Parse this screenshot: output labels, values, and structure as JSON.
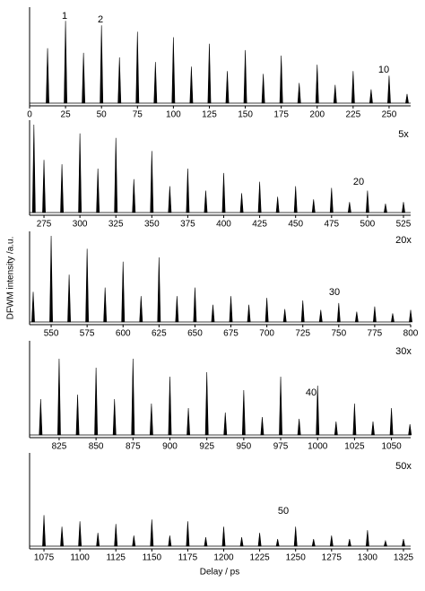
{
  "chart_data": [
    {
      "type": "spike",
      "xlim": [
        0,
        265
      ],
      "ylim": [
        0,
        100
      ],
      "xticks": [
        0,
        25,
        50,
        75,
        100,
        125,
        150,
        175,
        200,
        225,
        250
      ],
      "x": [
        12.5,
        25,
        37.5,
        50,
        62.5,
        75,
        87.5,
        100,
        112.5,
        125,
        137.5,
        150,
        162.5,
        175,
        187.5,
        200,
        212.5,
        225,
        237.5,
        250,
        262.5
      ],
      "values": [
        60,
        90,
        55,
        85,
        50,
        78,
        45,
        72,
        40,
        65,
        35,
        58,
        32,
        52,
        22,
        42,
        20,
        35,
        15,
        30,
        10
      ],
      "annotations": [
        "1",
        "2",
        "10"
      ]
    },
    {
      "type": "spike",
      "xlim": [
        265,
        530
      ],
      "ylim": [
        0,
        100
      ],
      "xticks": [
        275,
        300,
        325,
        350,
        375,
        400,
        425,
        450,
        475,
        500,
        525
      ],
      "x": [
        268,
        275,
        287.5,
        300,
        312.5,
        325,
        337.5,
        350,
        362.5,
        375,
        387.5,
        400,
        412.5,
        425,
        437.5,
        450,
        462.5,
        475,
        487.5,
        500,
        512.5,
        525
      ],
      "values": [
        100,
        60,
        55,
        90,
        50,
        85,
        38,
        70,
        30,
        50,
        25,
        45,
        22,
        35,
        18,
        30,
        15,
        28,
        12,
        25,
        10,
        12
      ],
      "annotations": [
        "5x",
        "20"
      ]
    },
    {
      "type": "spike",
      "xlim": [
        535,
        800
      ],
      "ylim": [
        0,
        100
      ],
      "xticks": [
        550,
        575,
        600,
        625,
        650,
        675,
        700,
        725,
        750,
        775,
        800
      ],
      "x": [
        537.5,
        550,
        562.5,
        575,
        587.5,
        600,
        612.5,
        625,
        637.5,
        650,
        662.5,
        675,
        687.5,
        700,
        712.5,
        725,
        737.5,
        750,
        762.5,
        775,
        787.5,
        800
      ],
      "values": [
        35,
        100,
        55,
        85,
        40,
        70,
        30,
        75,
        30,
        40,
        20,
        30,
        20,
        28,
        15,
        25,
        14,
        22,
        12,
        18,
        10,
        14
      ],
      "annotations": [
        "20x",
        "30"
      ],
      "ylabel": "DFWM intensity /a.u."
    },
    {
      "type": "spike",
      "xlim": [
        805,
        1063
      ],
      "ylim": [
        0,
        100
      ],
      "xticks": [
        825,
        850,
        875,
        900,
        925,
        950,
        975,
        1000,
        1025,
        1050
      ],
      "x": [
        812.5,
        825,
        837.5,
        850,
        862.5,
        875,
        887.5,
        900,
        912.5,
        925,
        937.5,
        950,
        962.5,
        975,
        987.5,
        1000,
        1012.5,
        1025,
        1037.5,
        1050,
        1062.5
      ],
      "values": [
        40,
        85,
        45,
        75,
        40,
        85,
        35,
        65,
        30,
        70,
        25,
        50,
        20,
        65,
        18,
        55,
        15,
        35,
        15,
        30,
        12
      ],
      "annotations": [
        "30x",
        "40"
      ]
    },
    {
      "type": "spike",
      "xlim": [
        1065,
        1330
      ],
      "ylim": [
        0,
        100
      ],
      "xticks": [
        1075,
        1100,
        1125,
        1150,
        1175,
        1200,
        1225,
        1250,
        1275,
        1300,
        1325
      ],
      "x": [
        1075,
        1087.5,
        1100,
        1112.5,
        1125,
        1137.5,
        1150,
        1162.5,
        1175,
        1187.5,
        1200,
        1212.5,
        1225,
        1237.5,
        1250,
        1262.5,
        1275,
        1287.5,
        1300,
        1312.5,
        1325
      ],
      "values": [
        35,
        22,
        28,
        15,
        25,
        12,
        30,
        12,
        28,
        10,
        22,
        10,
        15,
        8,
        22,
        8,
        12,
        8,
        18,
        6,
        8
      ],
      "annotations": [
        "50x",
        "50"
      ],
      "xlabel": "Delay / ps"
    }
  ]
}
